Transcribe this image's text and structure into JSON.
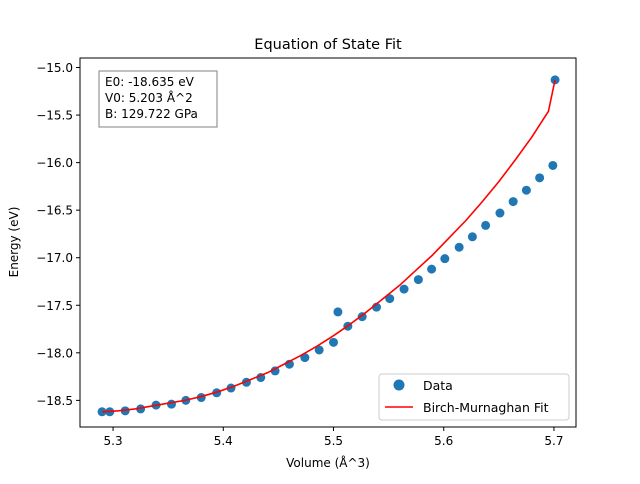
{
  "chart_data": {
    "type": "scatter",
    "title": "Equation of State Fit",
    "xlabel": "Volume (Å^3)",
    "ylabel": "Energy (eV)",
    "xlim": [
      5.27,
      5.72
    ],
    "ylim": [
      -18.78,
      -14.9
    ],
    "xticks": [
      5.3,
      5.4,
      5.5,
      5.6,
      5.7
    ],
    "yticks": [
      -18.5,
      -18.0,
      -17.5,
      -17.0,
      -16.5,
      -16.0,
      -15.5,
      -15.0
    ],
    "xtick_labels": [
      "5.3",
      "5.4",
      "5.5",
      "5.6",
      "5.7"
    ],
    "ytick_labels": [
      "−18.5",
      "−18.0",
      "−17.5",
      "−17.0",
      "−16.5",
      "−16.0",
      "−15.5",
      "−15.0"
    ],
    "grid": false,
    "legend_position": "lower-right",
    "annotation": {
      "lines": [
        "E0: -18.635 eV",
        "V0: 5.203 Å^2",
        "B: 129.722 GPa"
      ]
    },
    "series": [
      {
        "name": "Data",
        "kind": "scatter",
        "color": "#1f77b4",
        "x": [
          5.29,
          5.297,
          5.311,
          5.325,
          5.339,
          5.353,
          5.366,
          5.38,
          5.394,
          5.407,
          5.421,
          5.434,
          5.447,
          5.46,
          5.474,
          5.487,
          5.5,
          5.504,
          5.513,
          5.526,
          5.539,
          5.551,
          5.564,
          5.577,
          5.589,
          5.601,
          5.614,
          5.626,
          5.638,
          5.651,
          5.663,
          5.675,
          5.687,
          5.699,
          5.701
        ],
        "y": [
          -18.62,
          -18.62,
          -18.61,
          -18.59,
          -18.55,
          -18.54,
          -18.5,
          -18.47,
          -18.42,
          -18.37,
          -18.31,
          -18.26,
          -18.19,
          -18.12,
          -18.05,
          -17.97,
          -17.89,
          -17.57,
          -17.72,
          -17.62,
          -17.52,
          -17.43,
          -17.33,
          -17.23,
          -17.12,
          -17.01,
          -16.89,
          -16.78,
          -16.66,
          -16.53,
          -16.41,
          -16.29,
          -16.16,
          -16.03,
          -15.13
        ]
      },
      {
        "name": "Birch-Murnaghan Fit",
        "kind": "line",
        "color": "#ff0000",
        "x": [
          5.29,
          5.305,
          5.32,
          5.335,
          5.35,
          5.365,
          5.38,
          5.395,
          5.41,
          5.425,
          5.44,
          5.455,
          5.47,
          5.485,
          5.5,
          5.515,
          5.53,
          5.545,
          5.56,
          5.575,
          5.59,
          5.605,
          5.62,
          5.635,
          5.65,
          5.665,
          5.68,
          5.695,
          5.701
        ],
        "y": [
          -18.62,
          -18.61,
          -18.59,
          -18.56,
          -18.53,
          -18.5,
          -18.46,
          -18.41,
          -18.35,
          -18.28,
          -18.21,
          -18.12,
          -18.03,
          -17.93,
          -17.82,
          -17.7,
          -17.57,
          -17.43,
          -17.29,
          -17.13,
          -16.97,
          -16.79,
          -16.61,
          -16.41,
          -16.2,
          -15.97,
          -15.73,
          -15.46,
          -15.13
        ]
      }
    ]
  }
}
